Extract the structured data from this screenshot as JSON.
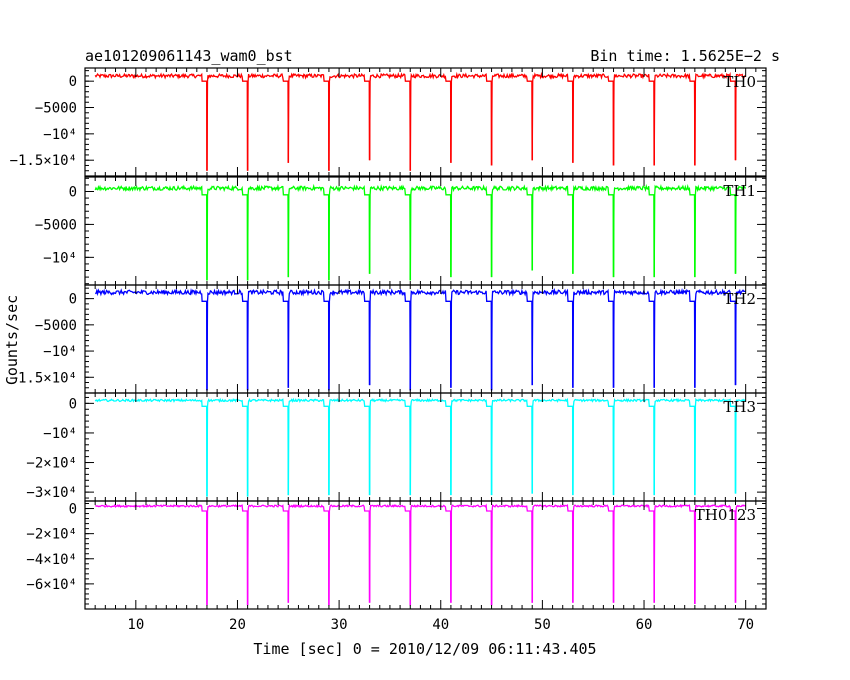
{
  "header": {
    "title": "ae101209061143_wam0_bst",
    "bin_time": "Bin time: 1.5625E−2 s"
  },
  "chart_data": {
    "type": "line",
    "xlabel": "Time [sec] 0 = 2010/12/09 06:11:43.405",
    "ylabel": "Counts/sec",
    "xlim": [
      5,
      72
    ],
    "x_ticks": [
      {
        "v": 10,
        "label": "10"
      },
      {
        "v": 20,
        "label": "20"
      },
      {
        "v": 30,
        "label": "30"
      },
      {
        "v": 40,
        "label": "40"
      },
      {
        "v": 50,
        "label": "50"
      },
      {
        "v": 60,
        "label": "60"
      },
      {
        "v": 70,
        "label": "70"
      }
    ],
    "active_segments": [
      [
        6,
        16.5
      ],
      [
        17.1,
        20.5
      ],
      [
        21.1,
        24.5
      ],
      [
        25.1,
        28.5
      ],
      [
        29.1,
        32.5
      ],
      [
        33.1,
        36.5
      ],
      [
        37.1,
        40.5
      ],
      [
        41.1,
        44.5
      ],
      [
        45.1,
        48.5
      ],
      [
        49.1,
        52.5
      ],
      [
        53.1,
        56.5
      ],
      [
        57.1,
        60.5
      ],
      [
        61.1,
        64.5
      ],
      [
        65.1,
        68.5
      ],
      [
        69.1,
        70
      ]
    ],
    "dips": [
      17.0,
      21.0,
      25.0,
      29.0,
      33.0,
      37.0,
      41.0,
      45.0,
      49.0,
      53.0,
      57.0,
      61.0,
      65.0,
      69.0
    ],
    "series": [
      {
        "name": "TH0",
        "color": "#ff0000",
        "level": 1000,
        "baseline": 0,
        "noise": 350,
        "dip_values": [
          -17000,
          -17000,
          -15500,
          -17000,
          -15000,
          -17000,
          -15500,
          -16000,
          -15000,
          -15500,
          -16000,
          -16000,
          -16000,
          -15000
        ],
        "ylim": [
          -18000,
          2500
        ],
        "y_ticks": [
          {
            "v": 0,
            "label": "0"
          },
          {
            "v": -5000,
            "label": "−5000"
          },
          {
            "v": -10000,
            "label": "−10⁴"
          },
          {
            "v": -15000,
            "label": "−1.5×10⁴"
          }
        ]
      },
      {
        "name": "TH1",
        "color": "#00ff00",
        "level": 500,
        "baseline": -500,
        "noise": 300,
        "dip_values": [
          -13500,
          -13500,
          -13000,
          -13500,
          -12500,
          -13500,
          -13000,
          -13000,
          -12000,
          -12500,
          -13000,
          -13000,
          -13000,
          -12500
        ],
        "ylim": [
          -14200,
          2200
        ],
        "y_ticks": [
          {
            "v": 0,
            "label": "0"
          },
          {
            "v": -5000,
            "label": "−5000"
          },
          {
            "v": -10000,
            "label": "−10⁴"
          }
        ]
      },
      {
        "name": "TH2",
        "color": "#0000ff",
        "level": 1200,
        "baseline": -500,
        "noise": 400,
        "dip_values": [
          -17500,
          -17500,
          -17000,
          -17500,
          -16500,
          -17500,
          -17000,
          -17500,
          -16500,
          -17000,
          -17000,
          -17000,
          -17000,
          -16500
        ],
        "ylim": [
          -18000,
          2600
        ],
        "y_ticks": [
          {
            "v": 0,
            "label": "0"
          },
          {
            "v": -5000,
            "label": "−5000"
          },
          {
            "v": -10000,
            "label": "−10⁴"
          },
          {
            "v": -15000,
            "label": "−1.5×10⁴"
          }
        ]
      },
      {
        "name": "TH3",
        "color": "#00ffff",
        "level": 1000,
        "baseline": -1000,
        "noise": 350,
        "dip_values": [
          -31500,
          -31500,
          -31000,
          -31000,
          -31000,
          -31000,
          -31000,
          -31000,
          -30500,
          -31000,
          -31000,
          -31000,
          -31000,
          -30500
        ],
        "ylim": [
          -33000,
          3500
        ],
        "y_ticks": [
          {
            "v": 0,
            "label": "0"
          },
          {
            "v": -10000,
            "label": "−10⁴"
          },
          {
            "v": -20000,
            "label": "−2×10⁴"
          },
          {
            "v": -30000,
            "label": "−3×10⁴"
          }
        ]
      },
      {
        "name": "TH0123",
        "color": "#ff00ff",
        "level": 2000,
        "baseline": -2000,
        "noise": 700,
        "dip_values": [
          -77000,
          -77000,
          -75000,
          -77000,
          -75000,
          -77000,
          -75000,
          -77000,
          -75000,
          -75000,
          -75000,
          -75000,
          -76000,
          -75000
        ],
        "ylim": [
          -80000,
          6000
        ],
        "y_ticks": [
          {
            "v": 0,
            "label": "0"
          },
          {
            "v": -20000,
            "label": "−2×10⁴"
          },
          {
            "v": -40000,
            "label": "−4×10⁴"
          },
          {
            "v": -60000,
            "label": "−6×10⁴"
          }
        ]
      }
    ]
  }
}
